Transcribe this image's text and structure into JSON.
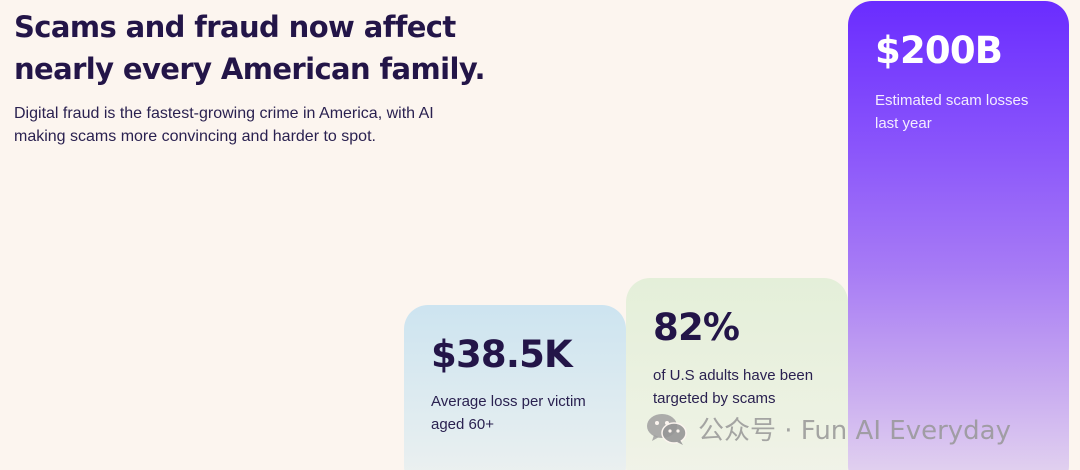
{
  "hero": {
    "headline_line1": "Scams and fraud now affect",
    "headline_line2": "nearly every American family.",
    "subtext_line1": "Digital fraud is the fastest-growing crime in America,  with AI",
    "subtext_line2": "making scams more convincing and harder to spot."
  },
  "stats": [
    {
      "value": "$38.5K",
      "caption_line1": "Average loss per victim",
      "caption_line2": "aged 60+",
      "color": "#cde4f0"
    },
    {
      "value": "82%",
      "caption_line1": "of U.S adults have been",
      "caption_line2": "targeted by scams",
      "color": "#e4efd9"
    },
    {
      "value": "$200B",
      "caption_line1": "Estimated scam losses",
      "caption_line2": "last year",
      "color": "#6a2cff"
    }
  ],
  "watermark": {
    "icon": "wechat-icon",
    "text": "公众号 · Fun AI Everyday"
  },
  "colors": {
    "background": "#fcf5ef",
    "text": "#231548"
  }
}
